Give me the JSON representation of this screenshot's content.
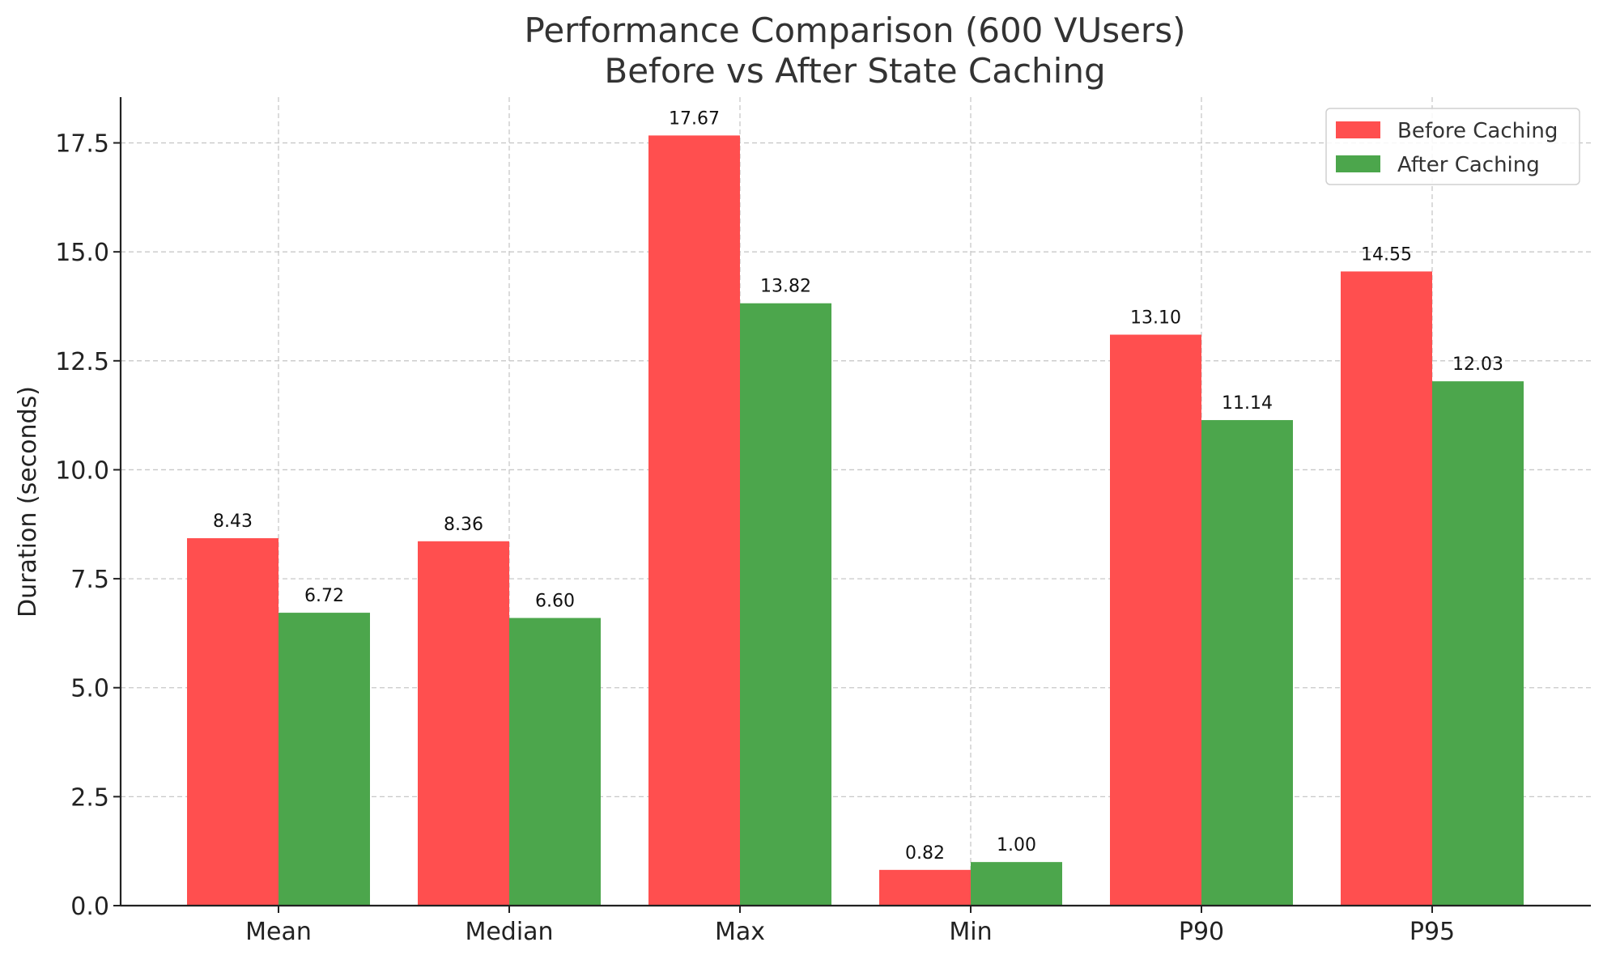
{
  "chart_data": {
    "type": "bar",
    "title": "Performance Comparison (600 VUsers)",
    "subtitle": "Before vs After State Caching",
    "xlabel": "",
    "ylabel": "Duration (seconds)",
    "categories": [
      "Mean",
      "Median",
      "Max",
      "Min",
      "P90",
      "P95"
    ],
    "series": [
      {
        "name": "Before Caching",
        "color": "#ff4f4f",
        "values": [
          8.43,
          8.36,
          17.67,
          0.82,
          13.1,
          14.55
        ],
        "labels": [
          "8.43",
          "8.36",
          "17.67",
          "0.82",
          "13.10",
          "14.55"
        ]
      },
      {
        "name": "After Caching",
        "color": "#4ca64c",
        "values": [
          6.72,
          6.6,
          13.82,
          1.0,
          11.14,
          12.03
        ],
        "labels": [
          "6.72",
          "6.60",
          "13.82",
          "1.00",
          "11.14",
          "12.03"
        ]
      }
    ],
    "ylim": [
      0,
      18.55
    ],
    "yticks": [
      0,
      2.5,
      5,
      7.5,
      10,
      12.5,
      15,
      17.5
    ],
    "ytick_labels": [
      "0.0",
      "2.5",
      "5.0",
      "7.5",
      "10.0",
      "12.5",
      "15.0",
      "17.5"
    ],
    "grid": true,
    "legend_position": "top-right"
  }
}
